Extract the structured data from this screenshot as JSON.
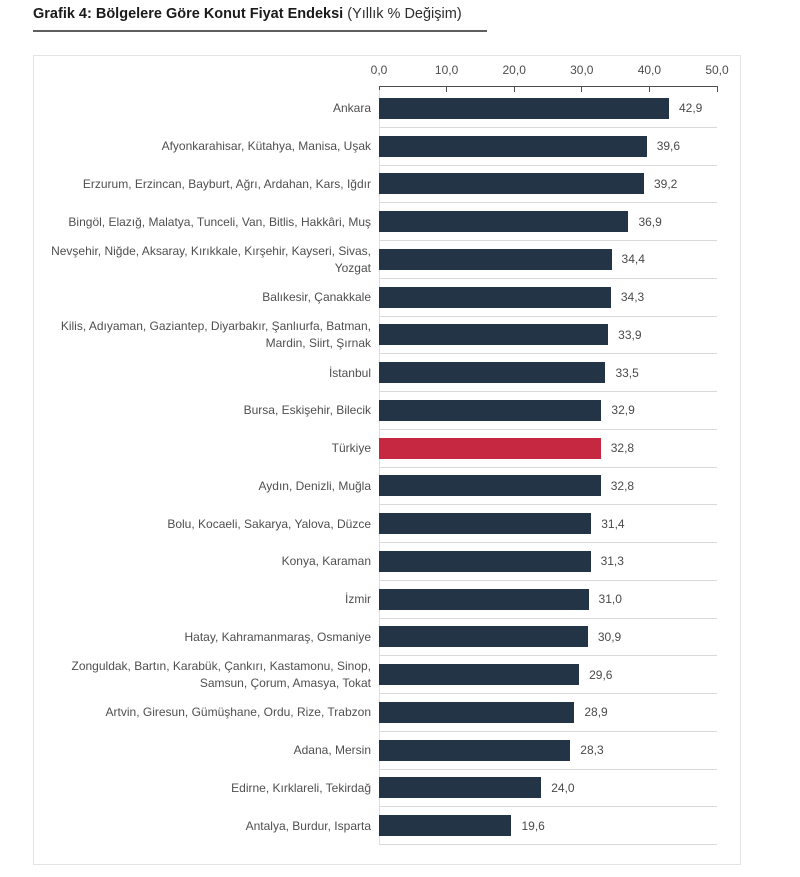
{
  "title": {
    "main": "Grafik 4: Bölgelere Göre Konut Fiyat Endeksi",
    "sub": "(Yıllık % Değişim)"
  },
  "colors": {
    "bar": "#243447",
    "highlight": "#c52840",
    "separator": "#d9d9d9",
    "axis_line": "#4f4f4f",
    "text": "#4f4f4f"
  },
  "chart_data": {
    "type": "bar",
    "orientation": "horizontal",
    "title": "Grafik 4: Bölgelere Göre Konut Fiyat Endeksi",
    "subtitle": "(Yıllık % Değişim)",
    "xlim": [
      0,
      50
    ],
    "x_ticks": [
      "0,0",
      "10,0",
      "20,0",
      "30,0",
      "40,0",
      "50,0"
    ],
    "grid": false,
    "legend": "none",
    "axis_position": "top",
    "highlight_category": "Türkiye",
    "rows": [
      {
        "label": "Ankara",
        "value": 42.9,
        "value_label": "42,9",
        "highlight": false
      },
      {
        "label": "Afyonkarahisar, Kütahya, Manisa, Uşak",
        "value": 39.6,
        "value_label": "39,6",
        "highlight": false
      },
      {
        "label": "Erzurum, Erzincan, Bayburt, Ağrı, Ardahan, Kars, Iğdır",
        "value": 39.2,
        "value_label": "39,2",
        "highlight": false
      },
      {
        "label": "Bingöl, Elazığ, Malatya, Tunceli, Van, Bitlis, Hakkâri, Muş",
        "value": 36.9,
        "value_label": "36,9",
        "highlight": false
      },
      {
        "label": "Nevşehir, Niğde, Aksaray, Kırıkkale, Kırşehir, Kayseri, Sivas, Yozgat",
        "value": 34.4,
        "value_label": "34,4",
        "highlight": false
      },
      {
        "label": "Balıkesir, Çanakkale",
        "value": 34.3,
        "value_label": "34,3",
        "highlight": false
      },
      {
        "label": "Kilis, Adıyaman, Gaziantep, Diyarbakır, Şanlıurfa, Batman, Mardin, Siirt, Şırnak",
        "value": 33.9,
        "value_label": "33,9",
        "highlight": false
      },
      {
        "label": "İstanbul",
        "value": 33.5,
        "value_label": "33,5",
        "highlight": false
      },
      {
        "label": "Bursa, Eskişehir, Bilecik",
        "value": 32.9,
        "value_label": "32,9",
        "highlight": false
      },
      {
        "label": "Türkiye",
        "value": 32.8,
        "value_label": "32,8",
        "highlight": true
      },
      {
        "label": "Aydın, Denizli, Muğla",
        "value": 32.8,
        "value_label": "32,8",
        "highlight": false
      },
      {
        "label": "Bolu, Kocaeli, Sakarya, Yalova, Düzce",
        "value": 31.4,
        "value_label": "31,4",
        "highlight": false
      },
      {
        "label": "Konya, Karaman",
        "value": 31.3,
        "value_label": "31,3",
        "highlight": false
      },
      {
        "label": "İzmir",
        "value": 31.0,
        "value_label": "31,0",
        "highlight": false
      },
      {
        "label": "Hatay, Kahramanmaraş, Osmaniye",
        "value": 30.9,
        "value_label": "30,9",
        "highlight": false
      },
      {
        "label": "Zonguldak, Bartın, Karabük, Çankırı, Kastamonu, Sinop, Samsun, Çorum, Amasya, Tokat",
        "value": 29.6,
        "value_label": "29,6",
        "highlight": false
      },
      {
        "label": "Artvin, Giresun, Gümüşhane, Ordu, Rize, Trabzon",
        "value": 28.9,
        "value_label": "28,9",
        "highlight": false
      },
      {
        "label": "Adana, Mersin",
        "value": 28.3,
        "value_label": "28,3",
        "highlight": false
      },
      {
        "label": "Edirne, Kırklareli, Tekirdağ",
        "value": 24.0,
        "value_label": "24,0",
        "highlight": false
      },
      {
        "label": "Antalya, Burdur, Isparta",
        "value": 19.6,
        "value_label": "19,6",
        "highlight": false
      }
    ]
  }
}
